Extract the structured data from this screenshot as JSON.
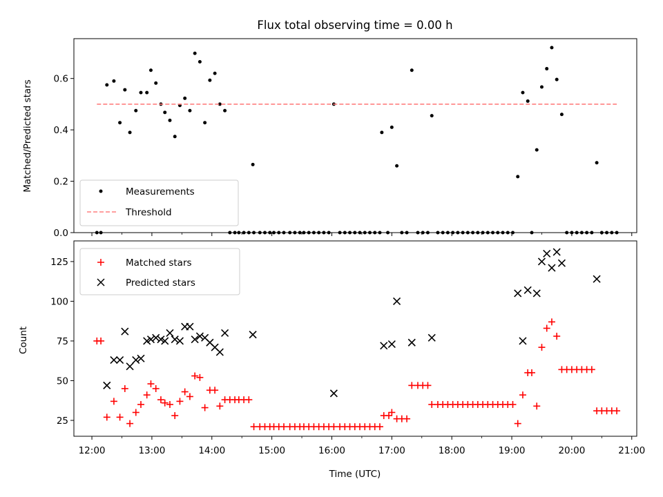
{
  "chart_data": [
    {
      "type": "scatter",
      "title": "Flux total observing time = 0.00 h",
      "xlabel": "",
      "ylabel": "Matched/Predicted stars",
      "xlim": [
        "11:42",
        "21:05"
      ],
      "ylim": [
        0,
        0.755
      ],
      "yticks": [
        "0.0",
        "0.2",
        "0.4",
        "0.6"
      ],
      "ytick_values": [
        0,
        0.2,
        0.4,
        0.6
      ],
      "grid": false,
      "legend_position": "lower-left",
      "series": [
        {
          "name": "Measurements",
          "marker": "dot",
          "color": "#000000",
          "points": [
            [
              "12:05",
              0
            ],
            [
              "12:09",
              0
            ],
            [
              "12:15",
              0.575
            ],
            [
              "12:22",
              0.59
            ],
            [
              "12:28",
              0.428
            ],
            [
              "12:33",
              0.556
            ],
            [
              "12:38",
              0.39
            ],
            [
              "12:44",
              0.475
            ],
            [
              "12:49",
              0.545
            ],
            [
              "12:55",
              0.545
            ],
            [
              "12:59",
              0.632
            ],
            [
              "13:04",
              0.582
            ],
            [
              "13:09",
              0.5
            ],
            [
              "13:13",
              0.468
            ],
            [
              "13:18",
              0.437
            ],
            [
              "13:23",
              0.374
            ],
            [
              "13:28",
              0.495
            ],
            [
              "13:33",
              0.523
            ],
            [
              "13:38",
              0.475
            ],
            [
              "13:43",
              0.698
            ],
            [
              "13:48",
              0.665
            ],
            [
              "13:53",
              0.428
            ],
            [
              "13:58",
              0.593
            ],
            [
              "14:03",
              0.62
            ],
            [
              "14:08",
              0.5
            ],
            [
              "14:13",
              0.475
            ],
            [
              "14:18",
              0
            ],
            [
              "14:23",
              0
            ],
            [
              "14:27",
              0
            ],
            [
              "14:32",
              0
            ],
            [
              "14:37",
              0
            ],
            [
              "14:42",
              0
            ],
            [
              "14:41",
              0.265
            ],
            [
              "14:48",
              0
            ],
            [
              "14:53",
              0
            ],
            [
              "14:58",
              0
            ],
            [
              "15:02",
              0
            ],
            [
              "15:07",
              0
            ],
            [
              "15:12",
              0
            ],
            [
              "15:18",
              0
            ],
            [
              "15:23",
              0
            ],
            [
              "15:28",
              0
            ],
            [
              "15:32",
              0
            ],
            [
              "15:37",
              0
            ],
            [
              "15:42",
              0
            ],
            [
              "15:47",
              0
            ],
            [
              "15:52",
              0
            ],
            [
              "15:57",
              0
            ],
            [
              "16:02",
              0.5
            ],
            [
              "16:08",
              0
            ],
            [
              "16:13",
              0
            ],
            [
              "16:18",
              0
            ],
            [
              "16:23",
              0
            ],
            [
              "16:28",
              0
            ],
            [
              "16:33",
              0
            ],
            [
              "16:38",
              0
            ],
            [
              "16:43",
              0
            ],
            [
              "16:48",
              0
            ],
            [
              "16:50",
              0.39
            ],
            [
              "16:56",
              0
            ],
            [
              "17:00",
              0.41
            ],
            [
              "17:05",
              0.26
            ],
            [
              "17:10",
              0
            ],
            [
              "17:15",
              0
            ],
            [
              "17:20",
              0.632
            ],
            [
              "17:26",
              0
            ],
            [
              "17:31",
              0
            ],
            [
              "17:36",
              0
            ],
            [
              "17:40",
              0.455
            ],
            [
              "17:46",
              0
            ],
            [
              "17:51",
              0
            ],
            [
              "17:56",
              0
            ],
            [
              "18:01",
              0
            ],
            [
              "18:06",
              0
            ],
            [
              "18:11",
              0
            ],
            [
              "18:16",
              0
            ],
            [
              "18:21",
              0
            ],
            [
              "18:26",
              0
            ],
            [
              "18:31",
              0
            ],
            [
              "18:36",
              0
            ],
            [
              "18:41",
              0
            ],
            [
              "18:46",
              0
            ],
            [
              "18:51",
              0
            ],
            [
              "18:56",
              0
            ],
            [
              "19:01",
              0
            ],
            [
              "19:06",
              0.218
            ],
            [
              "19:11",
              0.545
            ],
            [
              "19:16",
              0.512
            ],
            [
              "19:20",
              0
            ],
            [
              "19:25",
              0.322
            ],
            [
              "19:30",
              0.567
            ],
            [
              "19:35",
              0.638
            ],
            [
              "19:40",
              0.72
            ],
            [
              "19:45",
              0.596
            ],
            [
              "19:50",
              0.46
            ],
            [
              "19:55",
              0
            ],
            [
              "20:00",
              0
            ],
            [
              "20:05",
              0
            ],
            [
              "20:10",
              0
            ],
            [
              "20:15",
              0
            ],
            [
              "20:20",
              0
            ],
            [
              "20:25",
              0.272
            ],
            [
              "20:30",
              0
            ],
            [
              "20:35",
              0
            ],
            [
              "20:40",
              0
            ],
            [
              "20:45",
              0
            ]
          ]
        },
        {
          "name": "Threshold",
          "marker": "dashed-line",
          "color": "#ff7f7f",
          "points": [
            [
              "12:05",
              0.5
            ],
            [
              "20:45",
              0.5
            ]
          ]
        }
      ]
    },
    {
      "type": "scatter",
      "title": "",
      "xlabel": "Time (UTC)",
      "ylabel": "Count",
      "xlim": [
        "11:42",
        "21:05"
      ],
      "ylim": [
        15,
        138
      ],
      "yticks": [
        "25",
        "50",
        "75",
        "100",
        "125"
      ],
      "ytick_values": [
        25,
        50,
        75,
        100,
        125
      ],
      "xticks": [
        "12:00",
        "13:00",
        "14:00",
        "15:00",
        "16:00",
        "17:00",
        "18:00",
        "19:00",
        "20:00",
        "21:00"
      ],
      "grid": false,
      "legend_position": "upper-left",
      "series": [
        {
          "name": "Matched stars",
          "marker": "plus",
          "color": "#ff0000",
          "points": [
            [
              "12:05",
              75
            ],
            [
              "12:09",
              75
            ],
            [
              "12:15",
              27
            ],
            [
              "12:22",
              37
            ],
            [
              "12:28",
              27
            ],
            [
              "12:33",
              45
            ],
            [
              "12:38",
              23
            ],
            [
              "12:44",
              30
            ],
            [
              "12:49",
              35
            ],
            [
              "12:55",
              41
            ],
            [
              "12:59",
              48
            ],
            [
              "13:04",
              45
            ],
            [
              "13:09",
              38
            ],
            [
              "13:13",
              36
            ],
            [
              "13:18",
              35
            ],
            [
              "13:23",
              28
            ],
            [
              "13:28",
              37
            ],
            [
              "13:33",
              43
            ],
            [
              "13:38",
              40
            ],
            [
              "13:43",
              53
            ],
            [
              "13:48",
              52
            ],
            [
              "13:53",
              33
            ],
            [
              "13:58",
              44
            ],
            [
              "14:03",
              44
            ],
            [
              "14:08",
              34
            ],
            [
              "14:13",
              38
            ],
            [
              "14:18",
              38
            ],
            [
              "14:23",
              38
            ],
            [
              "14:27",
              38
            ],
            [
              "14:32",
              38
            ],
            [
              "14:37",
              38
            ],
            [
              "14:42",
              21
            ],
            [
              "14:48",
              21
            ],
            [
              "14:53",
              21
            ],
            [
              "14:58",
              21
            ],
            [
              "15:02",
              21
            ],
            [
              "15:07",
              21
            ],
            [
              "15:12",
              21
            ],
            [
              "15:18",
              21
            ],
            [
              "15:23",
              21
            ],
            [
              "15:28",
              21
            ],
            [
              "15:32",
              21
            ],
            [
              "15:37",
              21
            ],
            [
              "15:42",
              21
            ],
            [
              "15:47",
              21
            ],
            [
              "15:52",
              21
            ],
            [
              "15:57",
              21
            ],
            [
              "16:02",
              21
            ],
            [
              "16:08",
              21
            ],
            [
              "16:13",
              21
            ],
            [
              "16:18",
              21
            ],
            [
              "16:23",
              21
            ],
            [
              "16:28",
              21
            ],
            [
              "16:33",
              21
            ],
            [
              "16:38",
              21
            ],
            [
              "16:43",
              21
            ],
            [
              "16:48",
              21
            ],
            [
              "16:52",
              28
            ],
            [
              "16:57",
              28
            ],
            [
              "17:00",
              30
            ],
            [
              "17:05",
              26
            ],
            [
              "17:10",
              26
            ],
            [
              "17:15",
              26
            ],
            [
              "17:20",
              47
            ],
            [
              "17:26",
              47
            ],
            [
              "17:31",
              47
            ],
            [
              "17:36",
              47
            ],
            [
              "17:40",
              35
            ],
            [
              "17:46",
              35
            ],
            [
              "17:51",
              35
            ],
            [
              "17:56",
              35
            ],
            [
              "18:01",
              35
            ],
            [
              "18:06",
              35
            ],
            [
              "18:11",
              35
            ],
            [
              "18:16",
              35
            ],
            [
              "18:21",
              35
            ],
            [
              "18:26",
              35
            ],
            [
              "18:31",
              35
            ],
            [
              "18:36",
              35
            ],
            [
              "18:41",
              35
            ],
            [
              "18:46",
              35
            ],
            [
              "18:51",
              35
            ],
            [
              "18:56",
              35
            ],
            [
              "19:01",
              35
            ],
            [
              "19:06",
              23
            ],
            [
              "19:11",
              41
            ],
            [
              "19:16",
              55
            ],
            [
              "19:20",
              55
            ],
            [
              "19:25",
              34
            ],
            [
              "19:30",
              71
            ],
            [
              "19:35",
              83
            ],
            [
              "19:40",
              87
            ],
            [
              "19:45",
              78
            ],
            [
              "19:50",
              57
            ],
            [
              "19:55",
              57
            ],
            [
              "20:00",
              57
            ],
            [
              "20:05",
              57
            ],
            [
              "20:10",
              57
            ],
            [
              "20:15",
              57
            ],
            [
              "20:20",
              57
            ],
            [
              "20:25",
              31
            ],
            [
              "20:30",
              31
            ],
            [
              "20:35",
              31
            ],
            [
              "20:40",
              31
            ],
            [
              "20:45",
              31
            ]
          ]
        },
        {
          "name": "Predicted stars",
          "marker": "x",
          "color": "#000000",
          "points": [
            [
              "12:15",
              47
            ],
            [
              "12:22",
              63
            ],
            [
              "12:28",
              63
            ],
            [
              "12:33",
              81
            ],
            [
              "12:38",
              59
            ],
            [
              "12:44",
              63
            ],
            [
              "12:49",
              64
            ],
            [
              "12:55",
              75
            ],
            [
              "12:59",
              76
            ],
            [
              "13:04",
              77
            ],
            [
              "13:09",
              76
            ],
            [
              "13:13",
              75
            ],
            [
              "13:18",
              80
            ],
            [
              "13:23",
              76
            ],
            [
              "13:28",
              75
            ],
            [
              "13:33",
              84
            ],
            [
              "13:38",
              84
            ],
            [
              "13:43",
              76
            ],
            [
              "13:48",
              78
            ],
            [
              "13:53",
              77
            ],
            [
              "13:58",
              74
            ],
            [
              "14:03",
              71
            ],
            [
              "14:08",
              68
            ],
            [
              "14:13",
              80
            ],
            [
              "14:41",
              79
            ],
            [
              "16:02",
              42
            ],
            [
              "16:52",
              72
            ],
            [
              "17:00",
              73
            ],
            [
              "17:05",
              100
            ],
            [
              "17:20",
              74
            ],
            [
              "17:40",
              77
            ],
            [
              "19:06",
              105
            ],
            [
              "19:11",
              75
            ],
            [
              "19:16",
              107
            ],
            [
              "19:25",
              105
            ],
            [
              "19:30",
              125
            ],
            [
              "19:35",
              130
            ],
            [
              "19:40",
              121
            ],
            [
              "19:45",
              131
            ],
            [
              "19:50",
              124
            ],
            [
              "20:25",
              114
            ]
          ]
        }
      ]
    }
  ]
}
